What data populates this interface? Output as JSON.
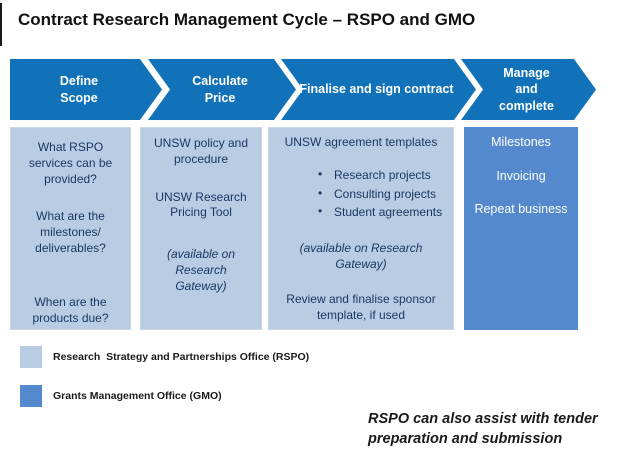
{
  "title": "Contract Research Management Cycle – RSPO and GMO",
  "colors": {
    "process_arrow_blue": "#1172B9",
    "rspo_light_blue": "#B8CCE4",
    "gmo_blue": "#5489CE",
    "box_text_navy": "#17375E"
  },
  "process_steps": [
    {
      "label": "Define Scope",
      "lines": [
        "Define",
        "Scope"
      ]
    },
    {
      "label": "Calculate Price",
      "lines": [
        "Calculate",
        "Price"
      ]
    },
    {
      "label": "Finalise and sign contract",
      "lines": [
        "Finalise and sign contract"
      ]
    },
    {
      "label": "Manage and complete",
      "lines": [
        "Manage",
        "and",
        "complete"
      ]
    }
  ],
  "columns": [
    {
      "paragraphs": [
        "What RSPO services can be provided?",
        "What are the milestones/ deliverables?",
        "When are the products due?"
      ]
    },
    {
      "paragraphs": [
        "UNSW policy and procedure",
        "UNSW Research Pricing Tool"
      ],
      "note": "(available on Research Gateway)"
    },
    {
      "heading": "UNSW agreement templates",
      "bullets": [
        "Research projects",
        "Consulting  projects",
        "Student agreements"
      ],
      "note": "(available on Research Gateway)",
      "footer": "Review and finalise sponsor template, if used"
    },
    {
      "paragraphs": [
        "Milestones",
        "Invoicing",
        "Repeat business"
      ]
    }
  ],
  "legend": [
    {
      "label": "Research  Strategy and Partnerships Office (RSPO)",
      "color": "#B8CCE4"
    },
    {
      "label": "Grants Management Office (GMO)",
      "color": "#5489CE"
    }
  ],
  "footnote": "RSPO can also assist with tender preparation and submission"
}
